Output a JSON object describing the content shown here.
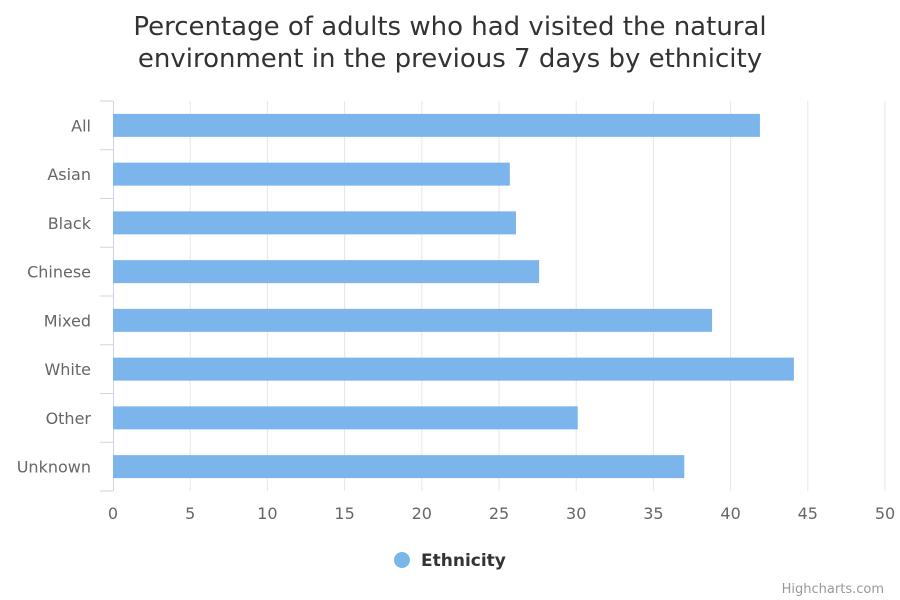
{
  "chart_data": {
    "type": "bar",
    "title": "Percentage of adults who had visited the natural environment in the previous 7 days by ethnicity",
    "title_lines": [
      "Percentage of adults who had visited the natural",
      "environment in the previous 7 days by ethnicity"
    ],
    "categories": [
      "All",
      "Asian",
      "Black",
      "Chinese",
      "Mixed",
      "White",
      "Other",
      "Unknown"
    ],
    "series": [
      {
        "name": "Ethnicity",
        "values": [
          41.9,
          25.7,
          26.1,
          27.6,
          38.8,
          44.1,
          30.1,
          37.0
        ],
        "color": "#7cb5ec"
      }
    ],
    "xlabel": "",
    "ylabel": "",
    "ylim": [
      0,
      50
    ],
    "ticks": [
      "0",
      "5",
      "10",
      "15",
      "20",
      "25",
      "30",
      "35",
      "40",
      "45",
      "50"
    ],
    "grid": true,
    "legend_position": "bottom-center",
    "colors": {
      "bar": "#7cb5ec",
      "grid": "#e6e6e6",
      "axis": "#ccd6eb"
    }
  },
  "credits": "Highcharts.com"
}
